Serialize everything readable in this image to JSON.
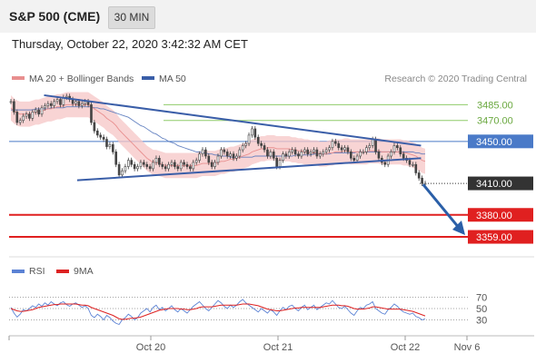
{
  "header": {
    "title": "S&P 500 (CME)",
    "timeframe": "30 MIN",
    "datetime": "Thursday, October 22, 2020 3:42:32 AM CET"
  },
  "legend": {
    "ma20_bb": "MA 20 + Bollinger Bands",
    "ma50": "MA 50",
    "credit": "Research © 2020 Trading Central"
  },
  "colors": {
    "price_candle": "#444444",
    "bollinger_band": "#f5c6c6",
    "ma20": "#e88f8f",
    "ma50": "#5577bb",
    "trend_line": "#3a5ea8",
    "green_level": "#8fcc6a",
    "blue_level": "#4a7ac8",
    "red_level": "#e02020",
    "current_price_tag": "#333333",
    "forecast_arrow": "#2a5fa8",
    "rsi": "#5b82d4",
    "rsi_9ma": "#dd2222"
  },
  "chart_data": [
    {
      "type": "candlestick",
      "y_range": [
        3340,
        3500
      ],
      "x_tick_labels": [
        "Oct 20",
        "Oct 21",
        "Oct 22",
        "Nov 6"
      ],
      "levels": [
        {
          "value": 3485.0,
          "label": "3485.00",
          "kind": "resistance"
        },
        {
          "value": 3470.0,
          "label": "3470.00",
          "kind": "resistance"
        },
        {
          "value": 3450.0,
          "label": "3450.00",
          "kind": "pivot"
        },
        {
          "value": 3410.0,
          "label": "3410.00",
          "kind": "last_price"
        },
        {
          "value": 3380.0,
          "label": "3380.00",
          "kind": "support"
        },
        {
          "value": 3359.0,
          "label": "3359.00",
          "kind": "support"
        }
      ],
      "closes": [
        3488,
        3478,
        3468,
        3470,
        3474,
        3476,
        3472,
        3478,
        3480,
        3476,
        3482,
        3484,
        3486,
        3484,
        3488,
        3490,
        3485,
        3492,
        3493,
        3490,
        3486,
        3488,
        3484,
        3486,
        3488,
        3485,
        3468,
        3460,
        3456,
        3454,
        3452,
        3445,
        3447,
        3440,
        3428,
        3418,
        3422,
        3426,
        3432,
        3428,
        3424,
        3426,
        3430,
        3428,
        3426,
        3424,
        3430,
        3434,
        3428,
        3426,
        3424,
        3428,
        3430,
        3426,
        3424,
        3430,
        3428,
        3426,
        3424,
        3430,
        3432,
        3438,
        3442,
        3436,
        3430,
        3426,
        3430,
        3436,
        3442,
        3440,
        3436,
        3438,
        3434,
        3436,
        3442,
        3446,
        3448,
        3456,
        3462,
        3454,
        3448,
        3446,
        3442,
        3436,
        3440,
        3434,
        3426,
        3432,
        3438,
        3436,
        3440,
        3442,
        3438,
        3436,
        3440,
        3442,
        3438,
        3440,
        3442,
        3436,
        3438,
        3440,
        3442,
        3444,
        3450,
        3448,
        3444,
        3442,
        3444,
        3440,
        3434,
        3432,
        3436,
        3440,
        3440,
        3444,
        3446,
        3452,
        3440,
        3434,
        3430,
        3428,
        3436,
        3440,
        3446,
        3444,
        3438,
        3434,
        3432,
        3428,
        3428,
        3420,
        3415,
        3410,
        3410
      ],
      "ma20": [
        3482,
        3479,
        3477,
        3476,
        3476,
        3476,
        3476,
        3477,
        3478,
        3478,
        3479,
        3480,
        3481,
        3481,
        3482,
        3483,
        3483,
        3484,
        3485,
        3485,
        3485,
        3485,
        3485,
        3485,
        3485,
        3485,
        3483,
        3481,
        3479,
        3477,
        3475,
        3472,
        3470,
        3468,
        3465,
        3461,
        3458,
        3455,
        3452,
        3449,
        3446,
        3443,
        3440,
        3437,
        3434,
        3432,
        3430,
        3430,
        3429,
        3428,
        3427,
        3427,
        3427,
        3427,
        3427,
        3427,
        3427,
        3427,
        3427,
        3427,
        3427,
        3428,
        3429,
        3429,
        3429,
        3429,
        3429,
        3430,
        3431,
        3431,
        3432,
        3433,
        3433,
        3434,
        3435,
        3436,
        3437,
        3438,
        3440,
        3441,
        3442,
        3443,
        3443,
        3444,
        3444,
        3444,
        3443,
        3443,
        3443,
        3443,
        3443,
        3442,
        3442,
        3441,
        3441,
        3440,
        3440,
        3439,
        3439,
        3439,
        3438,
        3438,
        3438,
        3439,
        3439,
        3440,
        3440,
        3440,
        3441,
        3441,
        3440,
        3440,
        3440,
        3440,
        3440,
        3440,
        3441,
        3441,
        3441,
        3441,
        3440,
        3440,
        3440,
        3440,
        3440,
        3440,
        3440,
        3439,
        3439,
        3438,
        3437,
        3436,
        3434,
        3432,
        3431
      ],
      "ma50": [
        3480,
        3480,
        3480,
        3480,
        3480,
        3480,
        3480,
        3480,
        3481,
        3481,
        3481,
        3481,
        3481,
        3482,
        3482,
        3482,
        3482,
        3482,
        3483,
        3483,
        3483,
        3483,
        3483,
        3483,
        3483,
        3483,
        3483,
        3482,
        3482,
        3481,
        3481,
        3480,
        3479,
        3478,
        3477,
        3476,
        3475,
        3474,
        3473,
        3471,
        3469,
        3467,
        3465,
        3464,
        3462,
        3460,
        3458,
        3457,
        3455,
        3453,
        3452,
        3450,
        3449,
        3448,
        3446,
        3445,
        3444,
        3443,
        3442,
        3441,
        3440,
        3440,
        3439,
        3439,
        3438,
        3438,
        3437,
        3437,
        3436,
        3436,
        3436,
        3435,
        3435,
        3435,
        3435,
        3435,
        3435,
        3435,
        3435,
        3436,
        3436,
        3436,
        3436,
        3436,
        3436,
        3436,
        3436,
        3436,
        3436,
        3436,
        3436,
        3436,
        3437,
        3437,
        3437,
        3437,
        3437,
        3437,
        3438,
        3438,
        3438,
        3438,
        3438,
        3438,
        3439,
        3439,
        3439,
        3439,
        3439,
        3439,
        3439,
        3439,
        3440,
        3440,
        3440,
        3440,
        3440,
        3440,
        3440,
        3440,
        3440,
        3440,
        3440,
        3440,
        3440,
        3440,
        3440,
        3440,
        3440,
        3440,
        3440,
        3439,
        3439,
        3438,
        3438
      ],
      "trend_lines": [
        {
          "from": [
            0.08,
            3494
          ],
          "to": [
            0.99,
            3446
          ]
        },
        {
          "from": [
            0.16,
            3413
          ],
          "to": [
            0.99,
            3434
          ]
        }
      ],
      "forecast_arrow": {
        "from": [
          0.995,
          3409
        ],
        "to_label": "3359.00"
      }
    },
    {
      "type": "line",
      "legend": [
        "RSI",
        "9MA"
      ],
      "y_range": [
        10,
        90
      ],
      "y_tick_labels": [
        "70",
        "50",
        "30"
      ],
      "rsi": [
        52,
        42,
        35,
        40,
        48,
        46,
        50,
        55,
        52,
        58,
        54,
        60,
        56,
        62,
        58,
        55,
        60,
        62,
        57,
        54,
        58,
        60,
        56,
        52,
        55,
        50,
        38,
        34,
        40,
        36,
        30,
        38,
        34,
        28,
        24,
        22,
        30,
        34,
        40,
        36,
        30,
        34,
        42,
        46,
        50,
        44,
        52,
        56,
        48,
        52,
        46,
        50,
        55,
        48,
        44,
        50,
        46,
        42,
        48,
        54,
        58,
        62,
        56,
        50,
        46,
        52,
        58,
        64,
        60,
        54,
        50,
        56,
        52,
        56,
        62,
        66,
        60,
        56,
        52,
        48,
        44,
        50,
        46,
        42,
        48,
        44,
        38,
        46,
        52,
        48,
        54,
        56,
        50,
        46,
        52,
        56,
        48,
        52,
        56,
        48,
        52,
        56,
        60,
        58,
        64,
        58,
        52,
        50,
        54,
        48,
        42,
        38,
        46,
        52,
        50,
        56,
        58,
        62,
        50,
        46,
        42,
        40,
        48,
        52,
        58,
        54,
        48,
        44,
        42,
        40,
        42,
        36,
        34,
        30,
        32
      ],
      "ma9": [
        50,
        48,
        46,
        45,
        45,
        46,
        47,
        48,
        50,
        52,
        53,
        54,
        55,
        56,
        57,
        57,
        58,
        58,
        58,
        58,
        58,
        58,
        57,
        56,
        56,
        55,
        52,
        50,
        48,
        46,
        44,
        42,
        40,
        38,
        35,
        32,
        31,
        31,
        32,
        33,
        33,
        34,
        35,
        37,
        39,
        41,
        43,
        45,
        47,
        48,
        49,
        50,
        50,
        50,
        50,
        49,
        49,
        48,
        48,
        49,
        50,
        52,
        53,
        53,
        53,
        53,
        54,
        55,
        56,
        56,
        56,
        56,
        56,
        56,
        57,
        58,
        58,
        58,
        57,
        56,
        55,
        53,
        51,
        49,
        48,
        47,
        46,
        46,
        47,
        48,
        49,
        50,
        51,
        51,
        52,
        52,
        52,
        52,
        52,
        52,
        52,
        53,
        54,
        55,
        56,
        56,
        56,
        55,
        55,
        54,
        52,
        50,
        49,
        49,
        49,
        50,
        51,
        53,
        53,
        52,
        51,
        50,
        49,
        49,
        49,
        49,
        49,
        48,
        47,
        46,
        45,
        43,
        41,
        39,
        37
      ]
    }
  ]
}
